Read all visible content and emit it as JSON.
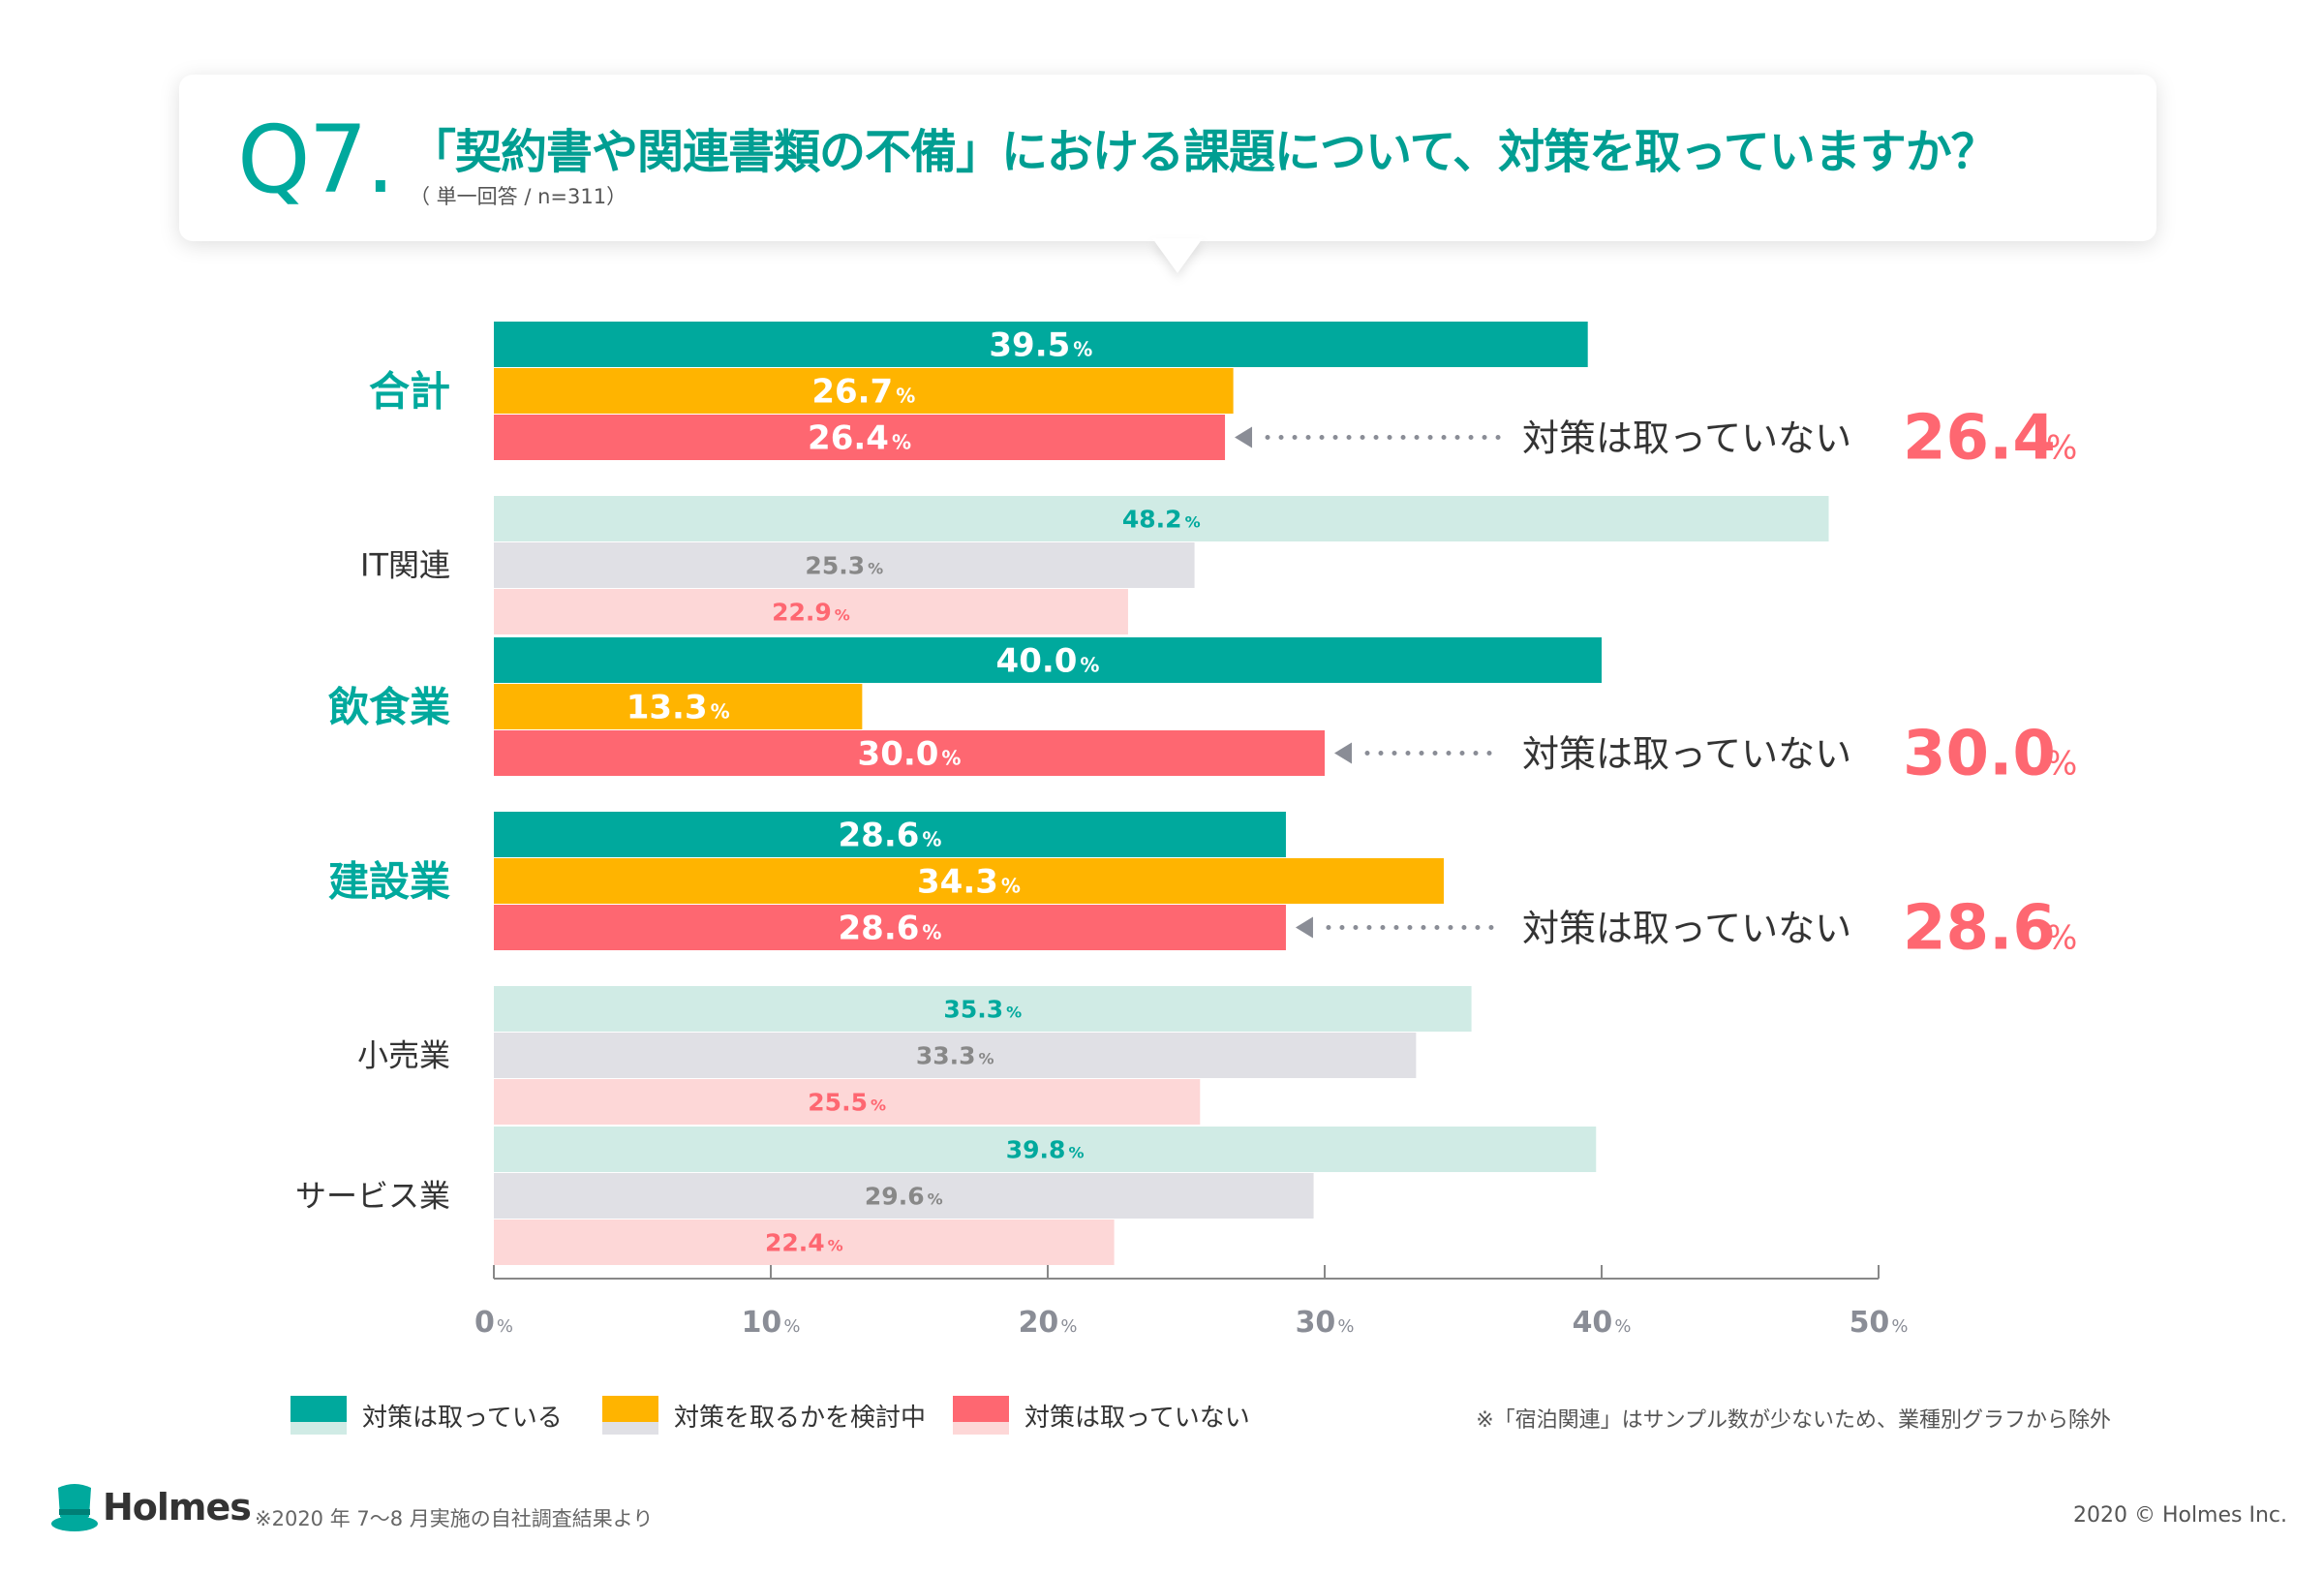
{
  "question": {
    "number": "Q7.",
    "text": "「契約書や関連書類の不備」における課題について、対策を取っていますか？",
    "sub": "（ 単一回答 / n=311）"
  },
  "colors": {
    "taken": "#00a99d",
    "considering": "#ffb400",
    "not_taken": "#fe6771",
    "taken_light": "#d0ebe5",
    "considering_light": "#e0e0e5",
    "not_taken_light": "#fdd7d7",
    "text_dark": "#333333",
    "grey_value": "#888888"
  },
  "chart_data": {
    "type": "bar",
    "orientation": "horizontal",
    "unit": "%",
    "xlim": [
      0,
      50
    ],
    "ticks": [
      0,
      10,
      20,
      30,
      40,
      50
    ],
    "series": [
      {
        "name": "対策は取っている",
        "key": "taken"
      },
      {
        "name": "対策を取るかを検討中",
        "key": "considering"
      },
      {
        "name": "対策は取っていない",
        "key": "not_taken"
      }
    ],
    "categories": [
      {
        "label": "合計",
        "highlight": true,
        "values": [
          39.5,
          26.7,
          26.4
        ],
        "callout": {
          "text": "対策は取っていない",
          "value": "26.4"
        }
      },
      {
        "label": "IT関連",
        "highlight": false,
        "values": [
          48.2,
          25.3,
          22.9
        ]
      },
      {
        "label": "飲食業",
        "highlight": true,
        "values": [
          40.0,
          13.3,
          30.0
        ],
        "callout": {
          "text": "対策は取っていない",
          "value": "30.0"
        }
      },
      {
        "label": "建設業",
        "highlight": true,
        "values": [
          28.6,
          34.3,
          28.6
        ],
        "callout": {
          "text": "対策は取っていない",
          "value": "28.6"
        }
      },
      {
        "label": "小売業",
        "highlight": false,
        "values": [
          35.3,
          33.3,
          25.5
        ]
      },
      {
        "label": "サービス業",
        "highlight": false,
        "values": [
          39.8,
          29.6,
          22.4
        ]
      }
    ]
  },
  "legend": [
    {
      "label": "対策は取っている",
      "key": "taken"
    },
    {
      "label": "対策を取るかを検討中",
      "key": "considering"
    },
    {
      "label": "対策は取っていない",
      "key": "not_taken"
    }
  ],
  "note": "※「宿泊関連」はサンプル数が少ないため、業種別グラフから除外",
  "footer": {
    "logo": "Holmes",
    "source": "※2020 年 7〜8 月実施の自社調査結果より",
    "copyright": "2020 © Holmes Inc."
  }
}
